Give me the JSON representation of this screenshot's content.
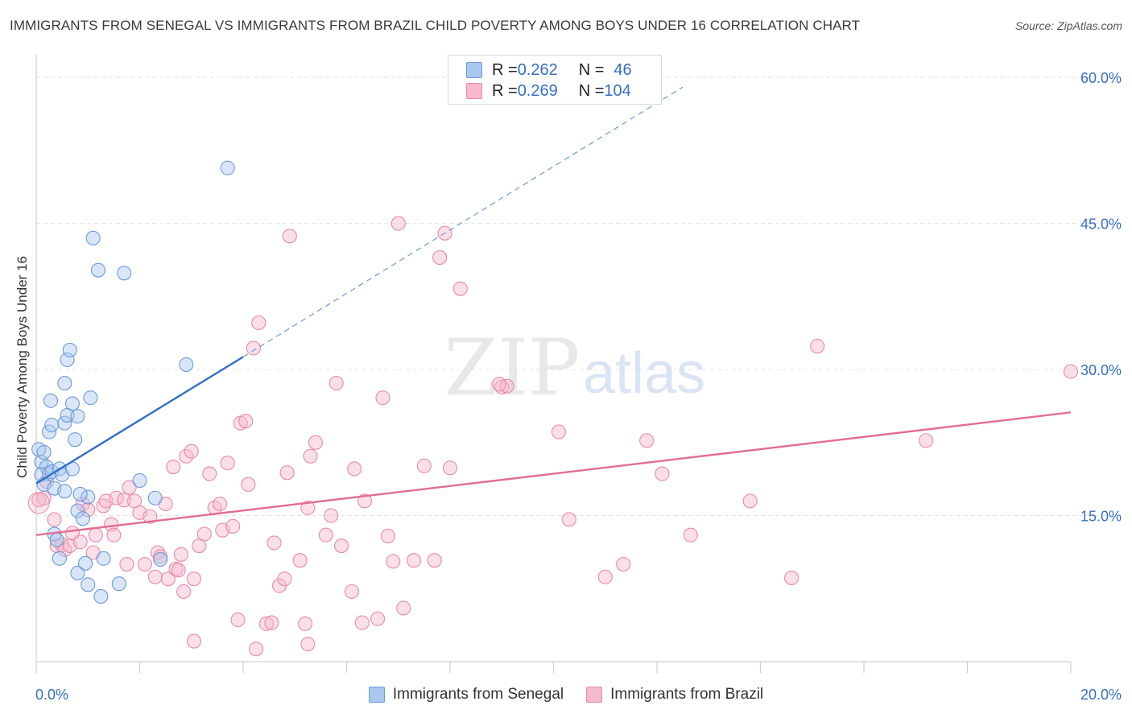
{
  "header": {
    "title": "IMMIGRANTS FROM SENEGAL VS IMMIGRANTS FROM BRAZIL CHILD POVERTY AMONG BOYS UNDER 16 CORRELATION CHART",
    "source": "Source: ZipAtlas.com"
  },
  "watermark": {
    "zip": "ZIP",
    "atlas": "atlas"
  },
  "legend": {
    "rows": [
      {
        "r_label": "R = ",
        "r_value": "0.262",
        "n_label": "N = ",
        "n_value": "46"
      },
      {
        "r_label": "R = ",
        "r_value": "0.269",
        "n_label": "N = ",
        "n_value": "104"
      }
    ]
  },
  "bottom_legend": {
    "senegal": "Immigrants from Senegal",
    "brazil": "Immigrants from Brazil"
  },
  "colors": {
    "senegal_fill": "#a9c8f0",
    "senegal_stroke": "#6d9ad8",
    "senegal_line": "#2f6fc9",
    "brazil_fill": "#f7b9cc",
    "brazil_stroke": "#e88aa8",
    "brazil_line": "#e26d95",
    "tick_label": "#3470c7"
  },
  "chart_data": {
    "type": "scatter",
    "title": "IMMIGRANTS FROM SENEGAL VS IMMIGRANTS FROM BRAZIL CHILD POVERTY AMONG BOYS UNDER 16 CORRELATION CHART",
    "xlabel": "",
    "ylabel": "Child Poverty Among Boys Under 16",
    "xlim": [
      0,
      20
    ],
    "ylim": [
      0,
      61.5
    ],
    "x_tick_labels": [
      "0.0%",
      "20.0%"
    ],
    "y_ticks": [
      15,
      30,
      45,
      60
    ],
    "y_tick_labels": [
      "15.0%",
      "30.0%",
      "45.0%",
      "60.0%"
    ],
    "grid": true,
    "series": [
      {
        "name": "Immigrants from Senegal",
        "R": 0.262,
        "N": 46,
        "trend": {
          "x0": 0,
          "y0": 18.3,
          "x1": 4.0,
          "y1": 31.3,
          "dashed_to_x": 12.5,
          "dashed_to_y": 59.0
        },
        "points": [
          [
            0.05,
            21.8
          ],
          [
            0.1,
            20.5
          ],
          [
            0.15,
            21.5
          ],
          [
            0.2,
            20.0
          ],
          [
            0.1,
            19.2
          ],
          [
            0.25,
            19.3
          ],
          [
            0.3,
            19.5
          ],
          [
            0.15,
            18.2
          ],
          [
            0.35,
            17.8
          ],
          [
            0.45,
            19.8
          ],
          [
            0.5,
            19.2
          ],
          [
            0.55,
            17.5
          ],
          [
            0.7,
            19.8
          ],
          [
            0.25,
            23.6
          ],
          [
            0.3,
            24.3
          ],
          [
            0.28,
            26.8
          ],
          [
            0.55,
            24.5
          ],
          [
            0.6,
            25.3
          ],
          [
            0.8,
            25.2
          ],
          [
            0.7,
            26.5
          ],
          [
            0.75,
            22.8
          ],
          [
            0.55,
            28.6
          ],
          [
            0.6,
            31.0
          ],
          [
            0.65,
            32.0
          ],
          [
            1.05,
            27.1
          ],
          [
            1.1,
            43.5
          ],
          [
            1.2,
            40.2
          ],
          [
            1.7,
            39.9
          ],
          [
            2.0,
            18.6
          ],
          [
            2.3,
            16.8
          ],
          [
            2.9,
            30.5
          ],
          [
            3.7,
            50.7
          ],
          [
            0.8,
            15.5
          ],
          [
            0.9,
            14.7
          ],
          [
            1.0,
            16.9
          ],
          [
            0.85,
            17.2
          ],
          [
            1.3,
            10.6
          ],
          [
            0.35,
            13.1
          ],
          [
            0.4,
            12.5
          ],
          [
            0.45,
            10.6
          ],
          [
            0.8,
            9.1
          ],
          [
            0.95,
            10.1
          ],
          [
            1.0,
            7.9
          ],
          [
            1.25,
            6.7
          ],
          [
            1.6,
            8.0
          ],
          [
            2.4,
            10.5
          ]
        ]
      },
      {
        "name": "Immigrants from Brazil",
        "R": 0.269,
        "N": 104,
        "trend": {
          "x0": 0,
          "y0": 13.0,
          "x1": 20.0,
          "y1": 25.6
        },
        "points": [
          [
            0.05,
            16.6
          ],
          [
            0.15,
            16.8
          ],
          [
            0.2,
            18.5
          ],
          [
            0.35,
            14.6
          ],
          [
            0.4,
            11.9
          ],
          [
            0.5,
            12.0
          ],
          [
            0.55,
            11.5
          ],
          [
            0.65,
            11.9
          ],
          [
            0.7,
            13.2
          ],
          [
            0.85,
            12.3
          ],
          [
            0.9,
            16.2
          ],
          [
            1.0,
            15.6
          ],
          [
            1.1,
            11.2
          ],
          [
            1.15,
            13.0
          ],
          [
            1.3,
            16.0
          ],
          [
            1.35,
            16.5
          ],
          [
            1.45,
            14.1
          ],
          [
            1.5,
            13.0
          ],
          [
            1.55,
            16.8
          ],
          [
            1.7,
            16.6
          ],
          [
            1.75,
            10.0
          ],
          [
            1.8,
            17.9
          ],
          [
            1.9,
            16.5
          ],
          [
            2.0,
            15.3
          ],
          [
            2.1,
            10.0
          ],
          [
            2.2,
            14.9
          ],
          [
            2.3,
            8.7
          ],
          [
            2.35,
            11.2
          ],
          [
            2.4,
            10.8
          ],
          [
            2.5,
            16.2
          ],
          [
            2.55,
            8.5
          ],
          [
            2.65,
            20.0
          ],
          [
            2.7,
            9.5
          ],
          [
            2.75,
            9.4
          ],
          [
            2.8,
            11.0
          ],
          [
            2.85,
            7.2
          ],
          [
            2.9,
            21.1
          ],
          [
            3.0,
            21.6
          ],
          [
            3.05,
            8.5
          ],
          [
            3.15,
            11.9
          ],
          [
            3.25,
            13.1
          ],
          [
            3.35,
            19.3
          ],
          [
            3.45,
            15.8
          ],
          [
            3.55,
            16.2
          ],
          [
            3.6,
            13.5
          ],
          [
            3.7,
            20.4
          ],
          [
            3.8,
            13.9
          ],
          [
            3.9,
            4.3
          ],
          [
            3.95,
            24.5
          ],
          [
            4.05,
            24.7
          ],
          [
            4.1,
            18.2
          ],
          [
            4.2,
            32.2
          ],
          [
            4.25,
            1.3
          ],
          [
            4.3,
            34.8
          ],
          [
            4.45,
            3.9
          ],
          [
            4.55,
            4.0
          ],
          [
            4.6,
            12.2
          ],
          [
            4.7,
            7.8
          ],
          [
            4.8,
            8.5
          ],
          [
            4.85,
            19.4
          ],
          [
            4.9,
            43.7
          ],
          [
            5.1,
            10.4
          ],
          [
            5.2,
            3.9
          ],
          [
            5.25,
            15.8
          ],
          [
            5.3,
            21.1
          ],
          [
            5.4,
            22.5
          ],
          [
            5.6,
            13.0
          ],
          [
            5.7,
            15.0
          ],
          [
            5.8,
            28.6
          ],
          [
            5.9,
            11.9
          ],
          [
            6.1,
            7.2
          ],
          [
            6.15,
            19.8
          ],
          [
            6.35,
            16.5
          ],
          [
            6.6,
            4.4
          ],
          [
            6.7,
            27.1
          ],
          [
            6.8,
            12.9
          ],
          [
            6.9,
            10.3
          ],
          [
            7.0,
            45.0
          ],
          [
            7.1,
            5.5
          ],
          [
            7.3,
            10.4
          ],
          [
            7.5,
            20.1
          ],
          [
            7.7,
            10.4
          ],
          [
            7.8,
            41.5
          ],
          [
            7.9,
            44.0
          ],
          [
            8.0,
            19.9
          ],
          [
            8.2,
            38.3
          ],
          [
            9.0,
            28.2
          ],
          [
            9.1,
            28.3
          ],
          [
            10.1,
            23.6
          ],
          [
            10.3,
            14.6
          ],
          [
            11.0,
            8.7
          ],
          [
            11.35,
            10.0
          ],
          [
            11.8,
            22.7
          ],
          [
            12.1,
            19.3
          ],
          [
            12.65,
            13.0
          ],
          [
            13.8,
            16.5
          ],
          [
            14.6,
            8.6
          ],
          [
            15.1,
            32.4
          ],
          [
            17.2,
            22.7
          ],
          [
            20.0,
            29.8
          ],
          [
            6.3,
            4.0
          ],
          [
            3.05,
            2.1
          ],
          [
            5.25,
            1.8
          ],
          [
            8.95,
            28.5
          ]
        ]
      }
    ]
  }
}
